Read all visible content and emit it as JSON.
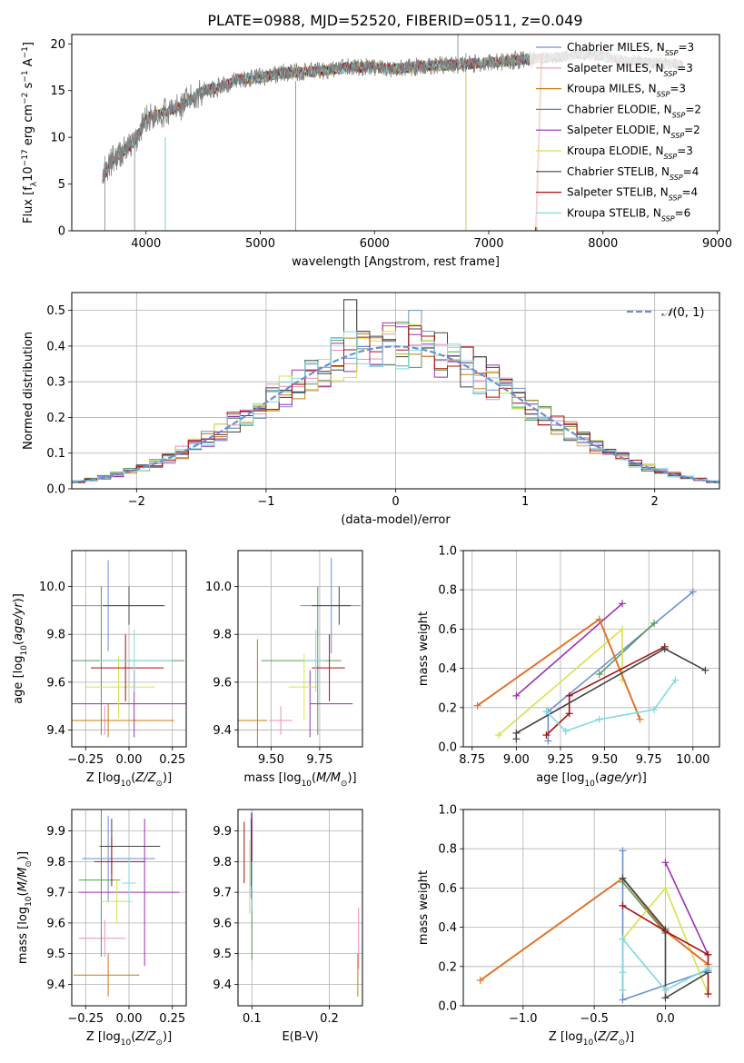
{
  "figure": {
    "title": "PLATE=0988, MJD=52520, FIBERID=0511, z=0.049"
  },
  "colors": {
    "Chabrier MILES": "#6a8fd6",
    "Salpeter MILES": "#e98fb8",
    "Kroupa MILES": "#c87a14",
    "Chabrier ELODIE": "#5a9a5a",
    "Salpeter ELODIE": "#9c2fb0",
    "Kroupa ELODIE": "#d7e24a",
    "Chabrier STELIB": "#444444",
    "Salpeter STELIB": "#a80f0f",
    "Kroupa STELIB": "#80d9e0",
    "normal_curve": "#6a8fd6",
    "data_line": "#808080",
    "orange_series": "#e0742c",
    "grid": "#b0b0b0"
  },
  "chart_data": [
    {
      "id": "spectrum",
      "type": "line",
      "title": "PLATE=0988, MJD=52520, FIBERID=0511, z=0.049",
      "xlabel": "wavelength [Angstrom, rest frame]",
      "ylabel": "Flux [f_λ 10^-17 erg cm^-2 s^-1 A^-1]",
      "xlim": [
        3350,
        9020
      ],
      "ylim": [
        0,
        21
      ],
      "xticks": [
        4000,
        5000,
        6000,
        7000,
        8000,
        9000
      ],
      "yticks": [
        0,
        5,
        10,
        15,
        20
      ],
      "grid": false,
      "legend_position": "top-right",
      "legend": [
        {
          "label": "Chabrier MILES, N",
          "sub": "SSP",
          "tail": "=3"
        },
        {
          "label": "Salpeter MILES, N",
          "sub": "SSP",
          "tail": "=3"
        },
        {
          "label": "Kroupa MILES, N",
          "sub": "SSP",
          "tail": "=3"
        },
        {
          "label": "Chabrier ELODIE, N",
          "sub": "SSP",
          "tail": "=2"
        },
        {
          "label": "Salpeter ELODIE, N",
          "sub": "SSP",
          "tail": "=2"
        },
        {
          "label": "Kroupa ELODIE, N",
          "sub": "SSP",
          "tail": "=3"
        },
        {
          "label": "Chabrier STELIB, N",
          "sub": "SSP",
          "tail": "=4"
        },
        {
          "label": "Salpeter STELIB, N",
          "sub": "SSP",
          "tail": "=4"
        },
        {
          "label": "Kroupa STELIB, N",
          "sub": "SSP",
          "tail": "=6"
        }
      ],
      "data_continuum": [
        [
          3620,
          5.5
        ],
        [
          3700,
          7.5
        ],
        [
          3800,
          8.5
        ],
        [
          3900,
          9.5
        ],
        [
          4000,
          12
        ],
        [
          4100,
          12.5
        ],
        [
          4200,
          12.8
        ],
        [
          4300,
          13.3
        ],
        [
          4400,
          14.2
        ],
        [
          4500,
          15
        ],
        [
          4600,
          15.2
        ],
        [
          4700,
          15.6
        ],
        [
          4800,
          16.2
        ],
        [
          4900,
          16.3
        ],
        [
          5000,
          16.4
        ],
        [
          5200,
          16.9
        ],
        [
          5400,
          17
        ],
        [
          5600,
          17.2
        ],
        [
          5800,
          17.5
        ],
        [
          6000,
          17.5
        ],
        [
          6200,
          17.3
        ],
        [
          6400,
          17.6
        ],
        [
          6600,
          17.7
        ],
        [
          6800,
          17.8
        ],
        [
          7000,
          18
        ],
        [
          7200,
          18.2
        ],
        [
          7400,
          18.4
        ],
        [
          7600,
          18.6
        ],
        [
          7800,
          18.9
        ],
        [
          8000,
          18.7
        ],
        [
          8200,
          18.1
        ],
        [
          8400,
          18
        ],
        [
          8600,
          17.9
        ],
        [
          8700,
          17.6
        ]
      ]
    },
    {
      "id": "residuals",
      "type": "bar",
      "xlabel": "(data-model)/error",
      "ylabel": "Normed distribution",
      "xlim": [
        -2.5,
        2.5
      ],
      "ylim": [
        0,
        0.55
      ],
      "xticks": [
        -2,
        -1,
        0,
        1,
        2
      ],
      "yticks": [
        0,
        0.1,
        0.2,
        0.3,
        0.4,
        0.5
      ],
      "grid": true,
      "legend_position": "top-right",
      "legend_label": "N(0,1)",
      "bin_width": 0.1
    },
    {
      "id": "age_vs_z",
      "type": "scatter",
      "xlabel": "Z [log10(Z/Z⊙)]",
      "ylabel": "age [log10(age/yr)]",
      "xlim": [
        -0.33,
        0.33
      ],
      "ylim": [
        9.33,
        10.15
      ],
      "xticks": [
        -0.25,
        0,
        0.25
      ],
      "xticklabels": [
        "−0.25",
        "0.00",
        "0.25"
      ],
      "yticks": [
        9.4,
        9.6,
        9.8,
        10.0
      ],
      "grid": true,
      "points": [
        {
          "s": "Chabrier MILES",
          "x": -0.12,
          "y": 9.92,
          "xerr": [
            0.35,
            0.33
          ],
          "yerr": 0.19
        },
        {
          "s": "Salpeter MILES",
          "x": -0.14,
          "y": 9.44,
          "xerr": [
            0.32,
            0.34
          ],
          "yerr": 0.06
        },
        {
          "s": "Kroupa MILES",
          "x": -0.12,
          "y": 9.44,
          "xerr": [
            0.35,
            0.38
          ],
          "yerr": 0.07
        },
        {
          "s": "Chabrier ELODIE",
          "x": -0.16,
          "y": 9.69,
          "xerr": [
            0.3,
            0.48
          ],
          "yerr": 0.31
        },
        {
          "s": "Salpeter ELODIE",
          "x": 0.03,
          "y": 9.51,
          "xerr": [
            0.48,
            0.55
          ],
          "yerr": 0.14
        },
        {
          "s": "Kroupa ELODIE",
          "x": -0.06,
          "y": 9.58,
          "xerr": [
            0.19,
            0.21
          ],
          "yerr": 0.13
        },
        {
          "s": "Chabrier STELIB",
          "x": 0.0,
          "y": 9.92,
          "xerr": [
            0.15,
            0.2
          ],
          "yerr": 0.08
        },
        {
          "s": "Salpeter STELIB",
          "x": -0.02,
          "y": 9.66,
          "xerr": [
            0.2,
            0.22
          ],
          "yerr": 0.14
        },
        {
          "s": "Kroupa STELIB",
          "x": 0.03,
          "y": 9.69,
          "xerr": [
            0.2,
            0.22
          ],
          "yerr": 0.13
        }
      ]
    },
    {
      "id": "age_vs_mass",
      "type": "scatter",
      "xlabel": "mass [log10(M/M⊙)]",
      "ylabel": "",
      "xlim": [
        9.33,
        9.97
      ],
      "ylim": [
        9.33,
        10.15
      ],
      "xticks": [
        9.5,
        9.75
      ],
      "xticklabels": [
        "9.50",
        "9.75"
      ],
      "yticks": [
        9.4,
        9.6,
        9.8,
        10.0
      ],
      "grid": true,
      "points": [
        {
          "s": "Chabrier MILES",
          "x": 9.81,
          "y": 9.92,
          "xerr": [
            0.16,
            0.15
          ],
          "yerr": 0.2
        },
        {
          "s": "Salpeter MILES",
          "x": 9.55,
          "y": 9.44,
          "xerr": [
            0.06,
            0.06
          ],
          "yerr": 0.06
        },
        {
          "s": "Kroupa MILES",
          "x": 9.43,
          "y": 9.44,
          "xerr": [
            0.1,
            0.05
          ],
          "yerr": 0.34
        },
        {
          "s": "Chabrier ELODIE",
          "x": 9.74,
          "y": 9.69,
          "xerr": [
            0.29,
            0.12
          ],
          "yerr": 0.31
        },
        {
          "s": "Salpeter ELODIE",
          "x": 9.7,
          "y": 9.51,
          "xerr": [
            0.0,
            0.22
          ],
          "yerr": 0.14
        },
        {
          "s": "Kroupa ELODIE",
          "x": 9.67,
          "y": 9.58,
          "xerr": [
            0.08,
            0.07
          ],
          "yerr": 0.14
        },
        {
          "s": "Chabrier STELIB",
          "x": 9.85,
          "y": 9.92,
          "xerr": [
            0.14,
            0.06
          ],
          "yerr": 0.08
        },
        {
          "s": "Salpeter STELIB",
          "x": 9.8,
          "y": 9.66,
          "xerr": [
            0.09,
            0.08
          ],
          "yerr": 0.14
        },
        {
          "s": "Kroupa STELIB",
          "x": 9.73,
          "y": 9.69,
          "xerr": [
            0.06,
            0.05
          ],
          "yerr": 0.13
        }
      ]
    },
    {
      "id": "mass_weight_vs_age",
      "type": "line",
      "xlabel": "age [log10(age/yr)]",
      "ylabel": "mass weight",
      "xlim": [
        8.7,
        10.15
      ],
      "ylim": [
        0,
        1
      ],
      "xticks": [
        8.75,
        9.0,
        9.25,
        9.5,
        9.75,
        10.0
      ],
      "xticklabels": [
        "8.75",
        "9.00",
        "9.25",
        "9.50",
        "9.75",
        "10.00"
      ],
      "yticks": [
        0,
        0.2,
        0.4,
        0.6,
        0.8,
        1.0
      ],
      "grid": true,
      "series": [
        {
          "s": "Chabrier MILES",
          "points": [
            [
              9.18,
              0.03
            ],
            [
              9.18,
              0.18
            ],
            [
              10.0,
              0.79
            ]
          ]
        },
        {
          "s": "Chabrier ELODIE",
          "points": [
            [
              9.47,
              0.37
            ],
            [
              9.78,
              0.63
            ]
          ]
        },
        {
          "s": "Salpeter ELODIE",
          "points": [
            [
              9.0,
              0.26
            ],
            [
              9.6,
              0.73
            ]
          ]
        },
        {
          "s": "Kroupa ELODIE",
          "points": [
            [
              8.9,
              0.06
            ],
            [
              9.6,
              0.6
            ],
            [
              9.6,
              0.34
            ]
          ]
        },
        {
          "s": "orange",
          "points": [
            [
              8.78,
              0.21
            ],
            [
              9.47,
              0.65
            ],
            [
              9.7,
              0.14
            ]
          ]
        },
        {
          "s": "Salpeter STELIB",
          "points": [
            [
              9.17,
              0.06
            ],
            [
              9.3,
              0.17
            ],
            [
              9.3,
              0.26
            ],
            [
              9.84,
              0.51
            ]
          ]
        },
        {
          "s": "Chabrier STELIB",
          "points": [
            [
              9.0,
              0.04
            ],
            [
              9.0,
              0.07
            ],
            [
              9.84,
              0.5
            ],
            [
              10.07,
              0.39
            ]
          ]
        },
        {
          "s": "Kroupa STELIB",
          "points": [
            [
              9.17,
              0.18
            ],
            [
              9.28,
              0.08
            ],
            [
              9.47,
              0.14
            ],
            [
              9.78,
              0.19
            ],
            [
              9.9,
              0.34
            ]
          ]
        }
      ]
    },
    {
      "id": "mass_vs_z",
      "type": "scatter",
      "xlabel": "Z [log10(Z/Z⊙)]",
      "ylabel": "mass [log10(M/M⊙)]",
      "xlim": [
        -0.33,
        0.33
      ],
      "ylim": [
        9.33,
        9.97
      ],
      "xticks": [
        -0.25,
        0,
        0.25
      ],
      "xticklabels": [
        "−0.25",
        "0.00",
        "0.25"
      ],
      "yticks": [
        9.4,
        9.5,
        9.6,
        9.7,
        9.8,
        9.9
      ],
      "grid": true,
      "points": [
        {
          "s": "Chabrier MILES",
          "x": -0.12,
          "y": 9.81,
          "xerr": [
            0.15,
            0.27
          ],
          "yerr": 0.14
        },
        {
          "s": "Salpeter MILES",
          "x": -0.14,
          "y": 9.55,
          "xerr": [
            0.15,
            0.12
          ],
          "yerr": 0.06
        },
        {
          "s": "Kroupa MILES",
          "x": -0.12,
          "y": 9.43,
          "xerr": [
            0.2,
            0.18
          ],
          "yerr": 0.07
        },
        {
          "s": "Chabrier ELODIE",
          "x": -0.16,
          "y": 9.74,
          "xerr": [
            0.13,
            0.11
          ],
          "yerr": 0.25
        },
        {
          "s": "Salpeter ELODIE",
          "x": 0.09,
          "y": 9.7,
          "xerr": [
            0.38,
            0.2
          ],
          "yerr": 0.24
        },
        {
          "s": "Kroupa ELODIE",
          "x": -0.07,
          "y": 9.67,
          "xerr": [
            0.09,
            0.09
          ],
          "yerr": 0.07
        },
        {
          "s": "Chabrier STELIB",
          "x": -0.1,
          "y": 9.85,
          "xerr": [
            0.07,
            0.28
          ],
          "yerr": 0.09
        },
        {
          "s": "Salpeter STELIB",
          "x": -0.1,
          "y": 9.8,
          "xerr": [
            0.1,
            0.19
          ],
          "yerr": 0.08
        },
        {
          "s": "Kroupa STELIB",
          "x": 0.0,
          "y": 9.73,
          "xerr": [
            0.04,
            0.04
          ],
          "yerr": 0.08
        }
      ]
    },
    {
      "id": "mass_vs_ebv",
      "type": "scatter",
      "xlabel": "E(B-V)",
      "ylabel": "",
      "xlim": [
        0.082,
        0.243
      ],
      "ylim": [
        9.33,
        9.97
      ],
      "xticks": [
        0.1,
        0.2
      ],
      "yticks": [
        9.4,
        9.5,
        9.6,
        9.7,
        9.8,
        9.9
      ],
      "grid": true,
      "points": [
        {
          "s": "Chabrier MILES",
          "x": 0.099,
          "y": 9.82,
          "xerr": [
            0,
            0
          ],
          "yerr": 0.14
        },
        {
          "s": "Salpeter MILES",
          "x": 0.238,
          "y": 9.55,
          "xerr": [
            0,
            0
          ],
          "yerr": 0.1
        },
        {
          "s": "Kroupa MILES",
          "x": 0.237,
          "y": 9.43,
          "xerr": [
            0,
            0
          ],
          "yerr": 0.07
        },
        {
          "s": "Chabrier ELODIE",
          "x": 0.1,
          "y": 9.7,
          "xerr": [
            0,
            0
          ],
          "yerr": 0.22
        },
        {
          "s": "Salpeter ELODIE",
          "x": 0.1,
          "y": 9.8,
          "xerr": [
            0,
            0
          ],
          "yerr": 0.16
        },
        {
          "s": "Kroupa ELODIE",
          "x": 0.097,
          "y": 9.75,
          "xerr": [
            0,
            0
          ],
          "yerr": 0.12
        },
        {
          "s": "Chabrier STELIB",
          "x": 0.099,
          "y": 9.83,
          "xerr": [
            0,
            0
          ],
          "yerr": 0.11
        },
        {
          "s": "Salpeter STELIB",
          "x": 0.09,
          "y": 9.83,
          "xerr": [
            0,
            0
          ],
          "yerr": 0.1
        },
        {
          "s": "Kroupa STELIB",
          "x": 0.1,
          "y": 9.72,
          "xerr": [
            0,
            0
          ],
          "yerr": 0.08
        }
      ]
    },
    {
      "id": "mass_weight_vs_z",
      "type": "line",
      "xlabel": "Z [log10(Z/Z⊙)]",
      "ylabel": "mass weight",
      "xlim": [
        -1.42,
        0.38
      ],
      "ylim": [
        0,
        1
      ],
      "xticks": [
        -1.0,
        -0.5,
        0.0
      ],
      "xticklabels": [
        "−1.0",
        "−0.5",
        "0.0"
      ],
      "yticks": [
        0,
        0.2,
        0.4,
        0.6,
        0.8,
        1.0
      ],
      "grid": true,
      "series": [
        {
          "s": "Chabrier MILES",
          "points": [
            [
              -0.3,
              0.79
            ],
            [
              -0.3,
              0.03
            ],
            [
              0.3,
              0.18
            ]
          ]
        },
        {
          "s": "Chabrier ELODIE",
          "points": [
            [
              -0.3,
              0.63
            ],
            [
              0.0,
              0.37
            ]
          ]
        },
        {
          "s": "Salpeter ELODIE",
          "points": [
            [
              0.0,
              0.73
            ],
            [
              0.3,
              0.26
            ]
          ]
        },
        {
          "s": "Kroupa ELODIE",
          "points": [
            [
              -0.3,
              0.34
            ],
            [
              0.0,
              0.6
            ],
            [
              0.3,
              0.06
            ]
          ]
        },
        {
          "s": "orange",
          "points": [
            [
              -1.3,
              0.13
            ],
            [
              -0.3,
              0.65
            ],
            [
              0.0,
              0.38
            ],
            [
              0.3,
              0.21
            ]
          ]
        },
        {
          "s": "Salpeter STELIB",
          "points": [
            [
              -0.3,
              0.51
            ],
            [
              0.0,
              0.38
            ],
            [
              0.3,
              0.26
            ],
            [
              0.3,
              0.06
            ]
          ]
        },
        {
          "s": "Chabrier STELIB",
          "points": [
            [
              -0.3,
              0.65
            ],
            [
              0.0,
              0.39
            ],
            [
              0.0,
              0.04
            ],
            [
              0.3,
              0.17
            ]
          ]
        },
        {
          "s": "Kroupa STELIB",
          "points": [
            [
              -0.3,
              0.17
            ],
            [
              -0.3,
              0.08
            ],
            [
              -0.3,
              0.34
            ],
            [
              0.0,
              0.08
            ],
            [
              0.3,
              0.19
            ]
          ]
        }
      ]
    }
  ]
}
